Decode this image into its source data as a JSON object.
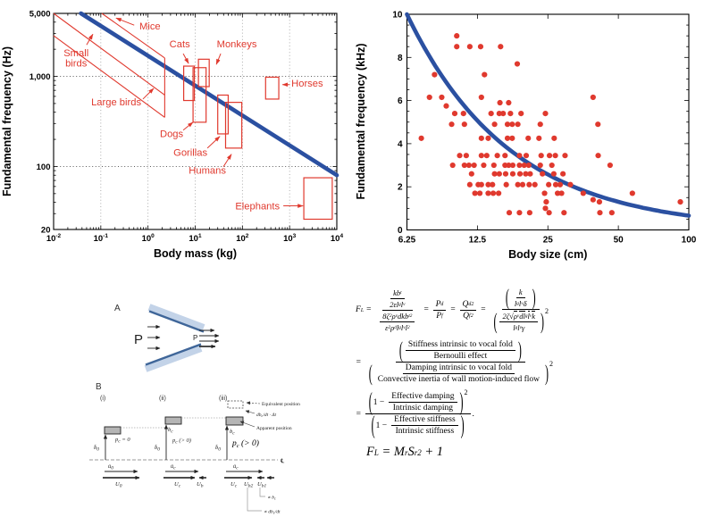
{
  "colors": {
    "red": "#e0392e",
    "blue": "#2b50a1",
    "bar_light": "#c3d3e8",
    "bar_dark": "#3f6699",
    "gray_fill": "#b5b5b5",
    "black": "#000000"
  },
  "punct": {
    "lp": "(",
    "rp": ")"
  },
  "chart_data": [
    {
      "id": "f0-vs-body-mass",
      "type": "line",
      "title": "",
      "xlabel": "Body mass (kg)",
      "ylabel": "Fundamental frequency (Hz)",
      "x_scale": "log10",
      "x_range": [
        0.01,
        10000
      ],
      "x_ticks": [
        {
          "v": 0.01,
          "base": "10",
          "exp": "-2"
        },
        {
          "v": 0.1,
          "base": "10",
          "exp": "-1"
        },
        {
          "v": 1,
          "base": "10",
          "exp": "0"
        },
        {
          "v": 10,
          "base": "10",
          "exp": "1"
        },
        {
          "v": 100,
          "base": "10",
          "exp": "2"
        },
        {
          "v": 1000,
          "base": "10",
          "exp": "3"
        },
        {
          "v": 10000,
          "base": "10",
          "exp": "4"
        }
      ],
      "y_scale": "log10",
      "y_range": [
        20,
        5000
      ],
      "y_ticks": [
        {
          "v": 20,
          "label": "20"
        },
        {
          "v": 100,
          "label": "100"
        },
        {
          "v": 1000,
          "label": "1,000"
        },
        {
          "v": 5000,
          "label": "5,000"
        }
      ],
      "gridlines_h": [
        100,
        1000
      ],
      "gridlines_v": [
        0.1,
        1,
        10,
        100,
        1000
      ],
      "trend_line": {
        "x1": 0.038,
        "y1": 5000,
        "x2": 10000,
        "y2": 80
      },
      "bands": [
        {
          "name": "small-birds-upper-line",
          "x1": 0.01,
          "y1": 5000,
          "x2": 2.26,
          "y2": 620
        },
        {
          "name": "large-birds-lower-line",
          "x1": 0.01,
          "y1": 2830,
          "x2": 2.26,
          "y2": 351
        },
        {
          "name": "mice-line",
          "x1": 0.105,
          "y1": 5000,
          "x2": 2.26,
          "y2": 1600
        },
        {
          "name": "band-closing-edge",
          "x1": 2.26,
          "y1": 351,
          "x2": 2.26,
          "y2": 1600
        }
      ],
      "boxes": [
        {
          "name": "Cats",
          "x": [
            5.7,
            9.6
          ],
          "y": [
            540,
            1300
          ]
        },
        {
          "name": "Monkeys",
          "x": [
            11.7,
            19.8
          ],
          "y": [
            770,
            1550
          ]
        },
        {
          "name": "Dogs",
          "x": [
            9,
            17
          ],
          "y": [
            310,
            1250
          ]
        },
        {
          "name": "Gorillas",
          "x": [
            30,
            50
          ],
          "y": [
            230,
            620
          ]
        },
        {
          "name": "Humans",
          "x": [
            44,
            97
          ],
          "y": [
            160,
            515
          ]
        },
        {
          "name": "Horses",
          "x": [
            310,
            590
          ],
          "y": [
            560,
            980
          ]
        },
        {
          "name": "Elephants",
          "x": [
            2000,
            8000
          ],
          "y": [
            26,
            75
          ]
        }
      ],
      "annotations": [
        {
          "label": "Mice",
          "anchor": "middle",
          "tx": 1.1,
          "ty": 3300,
          "sx": 0.51,
          "sy": 3700,
          "ax": 0.21,
          "ay": 4440
        },
        {
          "label": "Small birds",
          "lines": [
            "Small",
            "birds"
          ],
          "anchor": "middle",
          "tx": 0.03,
          "ty": 1667,
          "sx": 0.05,
          "sy": 2240,
          "ax": 0.068,
          "ay": 2945
        },
        {
          "label": "Large birds",
          "anchor": "middle",
          "tx": 0.212,
          "ty": 476,
          "sx": 0.78,
          "sy": 560,
          "ax": 1.32,
          "ay": 736
        },
        {
          "label": "Cats",
          "anchor": "middle",
          "tx": 4.7,
          "ty": 2100,
          "sx": 5.57,
          "sy": 1786,
          "ax": 7.24,
          "ay": 1390
        },
        {
          "label": "Monkeys",
          "anchor": "middle",
          "tx": 76,
          "ty": 2100,
          "sx": 34.7,
          "sy": 1786,
          "ax": 28,
          "ay": 1358
        },
        {
          "label": "Dogs",
          "anchor": "middle",
          "tx": 3.16,
          "ty": 211,
          "sx": 5.57,
          "sy": 253,
          "ax": 9.0,
          "ay": 310
        },
        {
          "label": "Gorillas",
          "anchor": "middle",
          "tx": 7.9,
          "ty": 131,
          "sx": 18.1,
          "sy": 160,
          "ax": 33.3,
          "ay": 216
        },
        {
          "label": "Humans",
          "anchor": "middle",
          "tx": 18.1,
          "ty": 83,
          "sx": 39.6,
          "sy": 99.5,
          "ax": 58.6,
          "ay": 137
        },
        {
          "label": "Horses",
          "anchor": "start",
          "tx": 1090,
          "ty": 770,
          "sx": 1000,
          "sy": 810,
          "ax": 705,
          "ay": 810
        },
        {
          "label": "Elephants",
          "anchor": "end",
          "tx": 618,
          "ty": 33.4,
          "sx": 736,
          "sy": 36.6,
          "ax": 1925,
          "ay": 36.6
        }
      ]
    },
    {
      "id": "f0-vs-body-size",
      "type": "scatter",
      "title": "",
      "xlabel": "Body size (cm)",
      "ylabel": "Fundamental frequency (kHz)",
      "x_scale": "log2",
      "x_range": [
        6.25,
        100
      ],
      "x_ticks": [
        {
          "v": 6.25,
          "label": "6.25"
        },
        {
          "v": 12.5,
          "label": "12.5"
        },
        {
          "v": 25,
          "label": "25"
        },
        {
          "v": 50,
          "label": "50"
        },
        {
          "v": 100,
          "label": "100"
        }
      ],
      "y_range": [
        0,
        10
      ],
      "y_ticks": [
        {
          "v": 0,
          "label": "0"
        },
        {
          "v": 2,
          "label": "2"
        },
        {
          "v": 4,
          "label": "4"
        },
        {
          "v": 6,
          "label": "6"
        },
        {
          "v": 8,
          "label": "8"
        },
        {
          "v": 10,
          "label": "10"
        }
      ],
      "y_minor_step": 0.5,
      "trend_curve": {
        "form": "power",
        "x_ref": 6.25,
        "y_ref": 10,
        "exponent": -0.98
      },
      "points": [
        [
          10.2,
          9.0
        ],
        [
          10.2,
          8.5
        ],
        [
          11.6,
          8.5
        ],
        [
          12.9,
          8.5
        ],
        [
          15.7,
          8.5
        ],
        [
          18.5,
          7.7
        ],
        [
          8.2,
          7.2
        ],
        [
          13.4,
          7.2
        ],
        [
          7.8,
          6.15
        ],
        [
          8.8,
          6.15
        ],
        [
          13.0,
          6.15
        ],
        [
          39.0,
          6.15
        ],
        [
          15.6,
          5.9
        ],
        [
          17.0,
          5.9
        ],
        [
          9.2,
          5.75
        ],
        [
          10.0,
          5.4
        ],
        [
          10.9,
          5.4
        ],
        [
          14.3,
          5.4
        ],
        [
          15.5,
          5.4
        ],
        [
          16.1,
          5.4
        ],
        [
          17.3,
          5.4
        ],
        [
          19.2,
          5.4
        ],
        [
          24.4,
          5.4
        ],
        [
          9.7,
          4.9
        ],
        [
          11.0,
          4.9
        ],
        [
          14.8,
          4.9
        ],
        [
          16.8,
          4.9
        ],
        [
          17.6,
          4.9
        ],
        [
          18.6,
          4.9
        ],
        [
          23.2,
          4.9
        ],
        [
          40.9,
          4.9
        ],
        [
          7.2,
          4.25
        ],
        [
          13.0,
          4.25
        ],
        [
          13.9,
          4.25
        ],
        [
          16.8,
          4.25
        ],
        [
          17.6,
          4.25
        ],
        [
          20.6,
          4.25
        ],
        [
          22.9,
          4.25
        ],
        [
          26.6,
          4.25
        ],
        [
          10.5,
          3.45
        ],
        [
          11.2,
          3.45
        ],
        [
          13.0,
          3.45
        ],
        [
          13.7,
          3.45
        ],
        [
          15.2,
          3.45
        ],
        [
          16.4,
          3.45
        ],
        [
          18.9,
          3.45
        ],
        [
          20.2,
          3.45
        ],
        [
          23.4,
          3.45
        ],
        [
          25.4,
          3.45
        ],
        [
          26.9,
          3.45
        ],
        [
          29.6,
          3.45
        ],
        [
          41.0,
          3.45
        ],
        [
          9.8,
          3.0
        ],
        [
          11.0,
          3.0
        ],
        [
          11.5,
          3.0
        ],
        [
          12.1,
          3.0
        ],
        [
          13.3,
          3.0
        ],
        [
          14.7,
          3.0
        ],
        [
          16.4,
          3.0
        ],
        [
          17.0,
          3.0
        ],
        [
          17.7,
          3.0
        ],
        [
          18.9,
          3.0
        ],
        [
          19.8,
          3.0
        ],
        [
          20.7,
          3.0
        ],
        [
          23.2,
          3.0
        ],
        [
          26.0,
          3.0
        ],
        [
          46.1,
          3.0
        ],
        [
          11.8,
          2.6
        ],
        [
          14.8,
          2.6
        ],
        [
          15.5,
          2.6
        ],
        [
          16.5,
          2.6
        ],
        [
          17.7,
          2.6
        ],
        [
          19.0,
          2.6
        ],
        [
          20.1,
          2.6
        ],
        [
          21.0,
          2.6
        ],
        [
          23.7,
          2.6
        ],
        [
          26.5,
          2.6
        ],
        [
          29.0,
          2.6
        ],
        [
          11.6,
          2.1
        ],
        [
          12.6,
          2.1
        ],
        [
          13.0,
          2.1
        ],
        [
          13.9,
          2.1
        ],
        [
          14.5,
          2.1
        ],
        [
          16.6,
          2.1
        ],
        [
          18.6,
          2.1
        ],
        [
          19.5,
          2.1
        ],
        [
          20.8,
          2.1
        ],
        [
          22.0,
          2.1
        ],
        [
          25.2,
          2.1
        ],
        [
          27.0,
          2.1
        ],
        [
          28.2,
          2.1
        ],
        [
          31.2,
          2.1
        ],
        [
          12.2,
          1.7
        ],
        [
          12.8,
          1.7
        ],
        [
          13.9,
          1.7
        ],
        [
          14.6,
          1.7
        ],
        [
          15.4,
          1.7
        ],
        [
          24.2,
          1.7
        ],
        [
          27.5,
          1.7
        ],
        [
          28.6,
          1.7
        ],
        [
          35.4,
          1.7
        ],
        [
          57.4,
          1.7
        ],
        [
          39.0,
          1.4
        ],
        [
          24.6,
          1.3
        ],
        [
          41.5,
          1.3
        ],
        [
          92.0,
          1.3
        ],
        [
          24.4,
          1.0
        ],
        [
          17.1,
          0.8
        ],
        [
          18.9,
          0.8
        ],
        [
          20.9,
          0.8
        ],
        [
          25.3,
          0.8
        ],
        [
          29.3,
          0.8
        ],
        [
          41.7,
          0.8
        ],
        [
          46.9,
          0.8
        ]
      ]
    }
  ],
  "diagram": {
    "a": {
      "label": "A",
      "p_left": "P",
      "p_right": "P"
    },
    "b": {
      "label": "B",
      "i_label": "(i)",
      "ii_label": "(ii)",
      "iii_label": "(iii)",
      "b0_base": "b̄",
      "b0_sub": "0",
      "bc_base": "b",
      "bc_sub": "c",
      "p_base": "p",
      "p_sub": "c",
      "p_zero": " = 0",
      "p_pos": " (> 0)",
      "u_base": "ū",
      "u0_sub": "0",
      "uc_sub": "c",
      "U_base": "U",
      "U0_sub": "0",
      "Uc_sub": "c",
      "Ub_sub": "b",
      "Ub2_sub": "b2",
      "Ub1_sub": "b1",
      "equivalent": "Equivalent position",
      "apparent": "Apparent position",
      "dbdt_base": "db",
      "dbdt_sub": "c",
      "dbdt_rest": "/dt · Δt",
      "prop_b_base": "∝ b",
      "prop_b_sub": "c",
      "prop_db_base": "∝ db",
      "prop_db_sub": "c",
      "prop_db_rest": "/dt",
      "centerline": "℄"
    }
  },
  "equations": {
    "e1": {
      "pre": [
        {
          "t": "F",
          "sub": "L"
        },
        {
          "t": " = "
        }
      ],
      "f1": {
        "nn": [
          {
            "t": "kb",
            "sub": "t"
          }
        ],
        "nd": [
          {
            "t": "2εl",
            "sub": "g"
          },
          {
            "t": "l",
            "sub": "v"
          }
        ],
        "dn": [
          {
            "t": "8ζ",
            "sup": "2"
          },
          {
            "t": "ρ",
            "sub": "v"
          },
          {
            "t": "dkb",
            "sub": "t",
            "sup": "2"
          }
        ],
        "dd": [
          {
            "t": "ε",
            "sup": "2"
          },
          {
            "t": "ρ",
            "sub": "d"
          },
          {
            "t": "l",
            "sub": "g"
          },
          {
            "t": "l",
            "sub": "v"
          },
          {
            "t": "l",
            "sup": "2"
          }
        ]
      },
      "mid": [
        {
          "t": " = "
        }
      ],
      "f2": {
        "n": [
          {
            "t": "P",
            "sub": "d"
          }
        ],
        "d": [
          {
            "t": "P",
            "sub": "f"
          }
        ]
      },
      "mid2": [
        {
          "t": " = "
        }
      ],
      "f3": {
        "n": [
          {
            "t": "Q",
            "sub": "d",
            "sup": "2"
          }
        ],
        "d": [
          {
            "t": "Q",
            "sub": "f",
            "sup": "2"
          }
        ]
      },
      "mid3": [
        {
          "t": " = "
        }
      ],
      "f4": {
        "nfn": [
          {
            "t": "k"
          }
        ],
        "nfd": [
          {
            "t": "l",
            "sub": "g"
          },
          {
            "t": "l",
            "sub": "v"
          },
          {
            "t": "δ"
          }
        ],
        "dfn": [
          {
            "t": "2ζ"
          },
          {
            "t": "√"
          },
          {
            "t": "ρ",
            "sub": "v",
            "ov": 1
          },
          {
            "t": "dl",
            "sub": "g",
            "ov": 1
          },
          {
            "t": "l",
            "sub": "v",
            "ov": 1
          },
          {
            "t": "k",
            "ov": 1
          }
        ],
        "dfd": [
          {
            "t": "l",
            "sub": "g"
          },
          {
            "t": "l",
            "sub": "v"
          },
          {
            "t": "γ"
          }
        ],
        "d_sup": "2"
      }
    },
    "e2": {
      "pre": [
        {
          "t": "= "
        }
      ],
      "top": {
        "n": "Stiffness intrinsic to vocal fold",
        "d": "Bernoulli effect"
      },
      "bot": {
        "n": "Damping intrinsic to vocal fold",
        "d": "Convective inertia of wall motion-induced flow"
      },
      "bot_sup": "2"
    },
    "e3": {
      "pre": [
        {
          "t": "= "
        }
      ],
      "top": {
        "one": "1 −",
        "n": "Effective damping",
        "d": "Intrinsic damping"
      },
      "top_sup": "2",
      "bot": {
        "one": "1 −",
        "n": "Effective stiffness",
        "d": "Intrinsic stiffness"
      },
      "period": "."
    },
    "e4": [
      {
        "t": "F",
        "sub": "L"
      },
      {
        "t": " = "
      },
      {
        "t": "M",
        "sub": "r"
      },
      {
        "t": "S",
        "sub": "r",
        "sup": "2"
      },
      {
        "t": " + 1"
      }
    ]
  }
}
